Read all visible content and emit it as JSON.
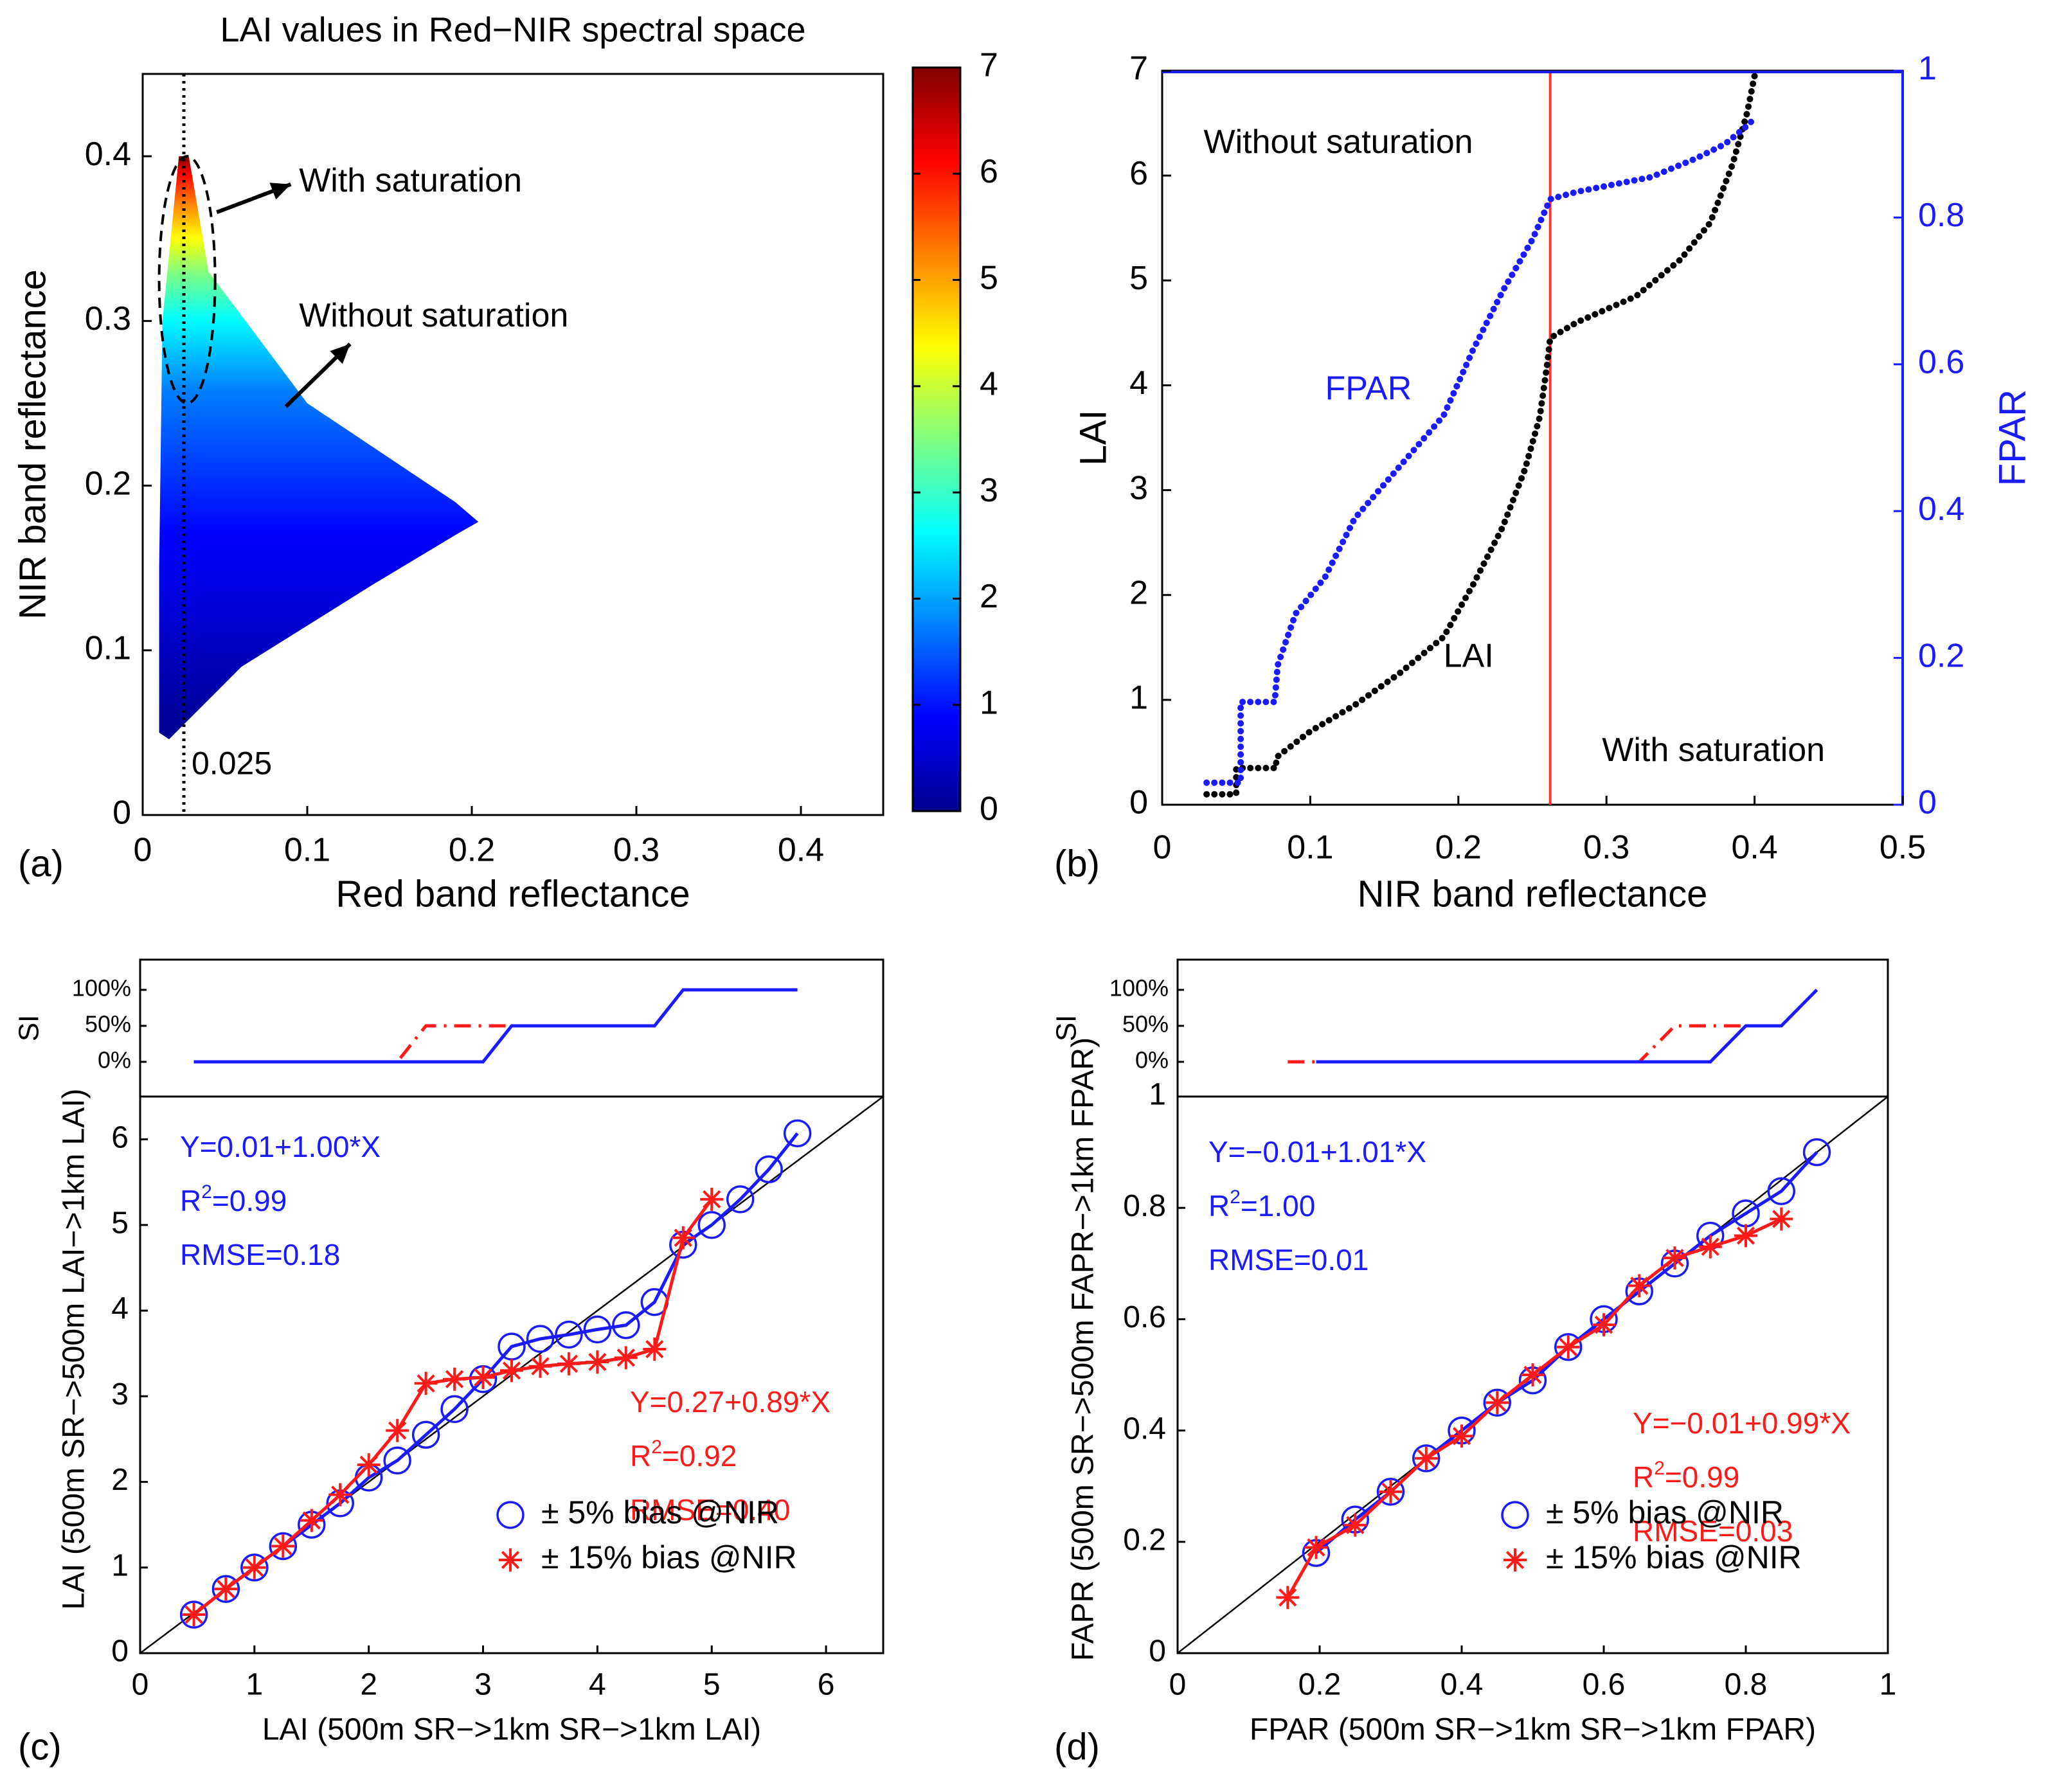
{
  "colors": {
    "blue": "#1a1aff",
    "red": "#ff1a1a",
    "black": "#000000",
    "ref_line": "#ff3333",
    "jet": [
      "#00008f",
      "#0000ff",
      "#0080ff",
      "#00ffff",
      "#80ff80",
      "#ffff00",
      "#ff8000",
      "#ff0000",
      "#800000"
    ]
  },
  "panel_labels": {
    "a": "(a)",
    "b": "(b)",
    "c": "(c)",
    "d": "(d)"
  },
  "chart_data": [
    {
      "id": "a",
      "type": "scatter",
      "title": "LAI values in Red−NIR spectral space",
      "xlabel": "Red band reflectance",
      "ylabel": "NIR band reflectance",
      "xlim": [
        0,
        0.45
      ],
      "ylim": [
        0,
        0.45
      ],
      "xticks": [
        0,
        0.1,
        0.2,
        0.3,
        0.4
      ],
      "xticklabels": [
        "0",
        "0.1",
        "0.2",
        "0.3",
        "0.4"
      ],
      "yticks": [
        0,
        0.1,
        0.2,
        0.3,
        0.4
      ],
      "yticklabels": [
        "0",
        "0.1",
        "0.2",
        "0.3",
        "0.4"
      ],
      "colorbar": {
        "range": [
          0,
          7
        ],
        "ticks": [
          0,
          1,
          2,
          3,
          4,
          5,
          6,
          7
        ],
        "ticklabels": [
          "0",
          "1",
          "2",
          "3",
          "4",
          "5",
          "6",
          "7"
        ],
        "colormap": "jet"
      },
      "region_outline": [
        [
          0.01,
          0.05
        ],
        [
          0.016,
          0.046
        ],
        [
          0.06,
          0.09
        ],
        [
          0.14,
          0.14
        ],
        [
          0.19,
          0.17
        ],
        [
          0.204,
          0.178
        ],
        [
          0.19,
          0.19
        ],
        [
          0.1,
          0.25
        ],
        [
          0.04,
          0.33
        ],
        [
          0.028,
          0.4
        ],
        [
          0.022,
          0.4
        ],
        [
          0.012,
          0.3
        ],
        [
          0.01,
          0.15
        ]
      ],
      "saturation_ellipse": {
        "center": [
          0.027,
          0.325
        ],
        "radii": [
          0.017,
          0.075
        ]
      },
      "vertical_line": {
        "x": 0.025,
        "label": "0.025"
      },
      "annotations": [
        {
          "text": "With saturation",
          "at": [
            0.095,
            0.384
          ],
          "arrow_from": [
            0.045,
            0.366
          ],
          "arrow_to": [
            0.09,
            0.383
          ]
        },
        {
          "text": "Without saturation",
          "at": [
            0.095,
            0.302
          ],
          "arrow_from": [
            0.087,
            0.248
          ],
          "arrow_to": [
            0.126,
            0.286
          ]
        }
      ]
    },
    {
      "id": "b",
      "type": "scatter",
      "xlabel": "NIR band reflectance",
      "ylabel": "LAI",
      "y2label": "FPAR",
      "xlim": [
        0,
        0.5
      ],
      "ylim": [
        0,
        7
      ],
      "y2lim": [
        0,
        1
      ],
      "xticks": [
        0,
        0.1,
        0.2,
        0.3,
        0.4,
        0.5
      ],
      "xticklabels": [
        "0",
        "0.1",
        "0.2",
        "0.3",
        "0.4",
        "0.5"
      ],
      "yticks": [
        0,
        1,
        2,
        3,
        4,
        5,
        6,
        7
      ],
      "yticklabels": [
        "0",
        "1",
        "2",
        "3",
        "4",
        "5",
        "6",
        "7"
      ],
      "y2ticks": [
        0,
        0.2,
        0.4,
        0.6,
        0.8,
        1
      ],
      "y2ticklabels": [
        "0",
        "0.2",
        "0.4",
        "0.6",
        "0.8",
        "1"
      ],
      "vertical_line": {
        "x": 0.262
      },
      "series": [
        {
          "name": "LAI",
          "axis": "left",
          "x": [
            0.03,
            0.05,
            0.05,
            0.077,
            0.077,
            0.1,
            0.13,
            0.16,
            0.19,
            0.21,
            0.23,
            0.245,
            0.255,
            0.26,
            0.262,
            0.28,
            0.32,
            0.35,
            0.37,
            0.385,
            0.395,
            0.4
          ],
          "y": [
            0.1,
            0.1,
            0.35,
            0.35,
            0.45,
            0.7,
            0.95,
            1.25,
            1.6,
            2.1,
            2.65,
            3.2,
            3.7,
            4.2,
            4.45,
            4.6,
            4.85,
            5.2,
            5.55,
            6.1,
            6.6,
            6.95
          ]
        },
        {
          "name": "FPAR",
          "axis": "right",
          "x": [
            0.03,
            0.053,
            0.053,
            0.076,
            0.078,
            0.09,
            0.11,
            0.13,
            0.16,
            0.19,
            0.21,
            0.23,
            0.25,
            0.262,
            0.28,
            0.33,
            0.36,
            0.38,
            0.395,
            0.4
          ],
          "y": [
            0.03,
            0.03,
            0.14,
            0.14,
            0.19,
            0.26,
            0.31,
            0.39,
            0.46,
            0.53,
            0.62,
            0.7,
            0.77,
            0.825,
            0.835,
            0.855,
            0.88,
            0.9,
            0.925,
            0.935
          ]
        },
        {
          "name": "FPAR upper bound",
          "axis": "right",
          "x": [
            0,
            0.5
          ],
          "y": [
            1,
            1
          ]
        }
      ],
      "annotations": [
        {
          "text": "Without saturation",
          "at": [
            0.028,
            6.3
          ]
        },
        {
          "text": "FPAR",
          "at": [
            0.11,
            3.95
          ]
        },
        {
          "text": "LAI",
          "at": [
            0.19,
            1.4
          ]
        },
        {
          "text": "With saturation",
          "at": [
            0.297,
            0.5
          ]
        }
      ]
    },
    {
      "id": "c",
      "type": "line",
      "xlabel": "LAI (500m SR−>1km SR−>1km LAI)",
      "ylabel": "LAI (500m SR−>500m LAI−>1km LAI)",
      "xlim": [
        0,
        6.5
      ],
      "ylim": [
        0,
        6.5
      ],
      "xticks": [
        0,
        1,
        2,
        3,
        4,
        5,
        6
      ],
      "xticklabels": [
        "0",
        "1",
        "2",
        "3",
        "4",
        "5",
        "6"
      ],
      "yticks": [
        0,
        1,
        2,
        3,
        4,
        5,
        6
      ],
      "yticklabels": [
        "0",
        "1",
        "2",
        "3",
        "4",
        "5",
        "6"
      ],
      "series": [
        {
          "name": "± 5% bias @NIR",
          "marker": "circle",
          "x": [
            0.47,
            0.75,
            1.0,
            1.25,
            1.5,
            1.75,
            2.0,
            2.25,
            2.5,
            2.75,
            3.0,
            3.25,
            3.5,
            3.75,
            4.0,
            4.25,
            4.5,
            4.75,
            5.0,
            5.25,
            5.5,
            5.75
          ],
          "y": [
            0.45,
            0.75,
            1.0,
            1.25,
            1.5,
            1.75,
            2.05,
            2.25,
            2.55,
            2.85,
            3.2,
            3.58,
            3.67,
            3.72,
            3.78,
            3.83,
            4.1,
            4.77,
            5.0,
            5.3,
            5.65,
            6.07
          ]
        },
        {
          "name": "± 15% bias @NIR",
          "marker": "star",
          "x": [
            0.47,
            0.75,
            1.0,
            1.25,
            1.5,
            1.75,
            2.0,
            2.25,
            2.5,
            2.75,
            3.0,
            3.25,
            3.5,
            3.75,
            4.0,
            4.25,
            4.5,
            4.75,
            5.0
          ],
          "y": [
            0.45,
            0.75,
            1.0,
            1.25,
            1.55,
            1.85,
            2.2,
            2.6,
            3.15,
            3.2,
            3.22,
            3.3,
            3.35,
            3.38,
            3.4,
            3.45,
            3.55,
            4.85,
            5.3
          ]
        }
      ],
      "fits": [
        {
          "equation": "Y=0.01+1.00*X",
          "r2": "0.99",
          "rmse": "RMSE=0.18"
        },
        {
          "equation": "Y=0.27+0.89*X",
          "r2": "0.92",
          "rmse": "RMSE=0.40"
        }
      ],
      "si_panel": {
        "ylabel": "SI",
        "yticklabels": [
          "0%",
          "50%",
          "100%"
        ],
        "series": [
          {
            "name": "± 5% bias @NIR",
            "x": [
              0.47,
              3.0,
              3.25,
              4.5,
              4.75,
              5.75
            ],
            "y": [
              0,
              0,
              50,
              50,
              100,
              100
            ]
          },
          {
            "name": "± 15% bias @NIR",
            "x": [
              0.47,
              2.25,
              2.5,
              4.5,
              4.75,
              5.0
            ],
            "y": [
              0,
              0,
              50,
              50,
              100,
              100
            ]
          }
        ]
      }
    },
    {
      "id": "d",
      "type": "line",
      "xlabel": "FPAR (500m SR−>1km SR−>1km FPAR)",
      "ylabel": "FAPR (500m SR−>500m FAPR−>1km FPAR)",
      "xlim": [
        0,
        1
      ],
      "ylim": [
        0,
        1
      ],
      "xticks": [
        0,
        0.2,
        0.4,
        0.6,
        0.8,
        1
      ],
      "xticklabels": [
        "0",
        "0.2",
        "0.4",
        "0.6",
        "0.8",
        "1"
      ],
      "yticks": [
        0,
        0.2,
        0.4,
        0.6,
        0.8,
        1
      ],
      "yticklabels": [
        "0",
        "0.2",
        "0.4",
        "0.6",
        "0.8",
        "1"
      ],
      "series": [
        {
          "name": "± 5% bias @NIR",
          "marker": "circle",
          "x": [
            0.195,
            0.25,
            0.3,
            0.35,
            0.4,
            0.45,
            0.5,
            0.55,
            0.6,
            0.65,
            0.7,
            0.75,
            0.8,
            0.85,
            0.9
          ],
          "y": [
            0.18,
            0.24,
            0.29,
            0.35,
            0.4,
            0.45,
            0.49,
            0.55,
            0.6,
            0.65,
            0.7,
            0.75,
            0.79,
            0.83,
            0.9
          ]
        },
        {
          "name": "± 15% bias @NIR",
          "marker": "star",
          "x": [
            0.155,
            0.195,
            0.25,
            0.3,
            0.35,
            0.4,
            0.45,
            0.5,
            0.55,
            0.6,
            0.65,
            0.7,
            0.75,
            0.8,
            0.85
          ],
          "y": [
            0.1,
            0.19,
            0.23,
            0.29,
            0.35,
            0.39,
            0.45,
            0.5,
            0.55,
            0.59,
            0.66,
            0.71,
            0.73,
            0.75,
            0.78
          ]
        }
      ],
      "fits": [
        {
          "equation": "Y=−0.01+1.01*X",
          "r2": "1.00",
          "rmse": "RMSE=0.01"
        },
        {
          "equation": "Y=−0.01+0.99*X",
          "r2": "0.99",
          "rmse": "RMSE=0.03"
        }
      ],
      "si_panel": {
        "ylabel": "SI",
        "yticklabels": [
          "0%",
          "50%",
          "100%"
        ],
        "series": [
          {
            "name": "± 5% bias @NIR",
            "x": [
              0.195,
              0.75,
              0.8,
              0.85,
              0.9
            ],
            "y": [
              0,
              0,
              50,
              50,
              100
            ]
          },
          {
            "name": "± 15% bias @NIR",
            "x": [
              0.155,
              0.65,
              0.7,
              0.8
            ],
            "y": [
              0,
              0,
              50,
              50
            ]
          }
        ]
      }
    }
  ]
}
